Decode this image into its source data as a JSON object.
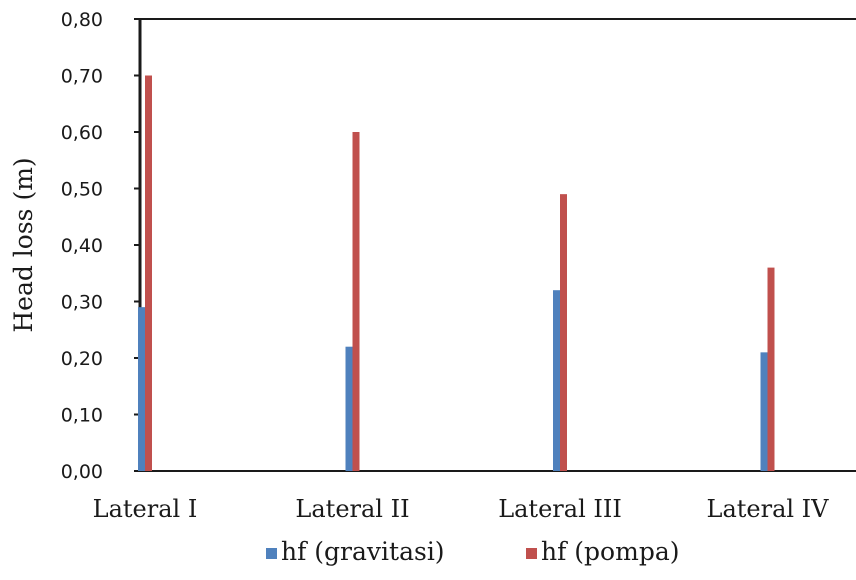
{
  "chart_data": {
    "type": "bar",
    "categories": [
      "Lateral I",
      "Lateral II",
      "Lateral III",
      "Lateral IV"
    ],
    "series": [
      {
        "name": "hf (gravitasi)",
        "color": "#4f81bd",
        "values": [
          0.29,
          0.22,
          0.32,
          0.21
        ]
      },
      {
        "name": "hf (pompa)",
        "color": "#c0504d",
        "values": [
          0.7,
          0.6,
          0.49,
          0.36
        ]
      }
    ],
    "ylabel": "Head loss (m)",
    "xlabel": "",
    "ylim": [
      0,
      0.8
    ],
    "yticks": [
      "0,00",
      "0,10",
      "0,20",
      "0,30",
      "0,40",
      "0,50",
      "0,60",
      "0,70",
      "0,80"
    ],
    "grid": false,
    "legend_position": "bottom"
  }
}
